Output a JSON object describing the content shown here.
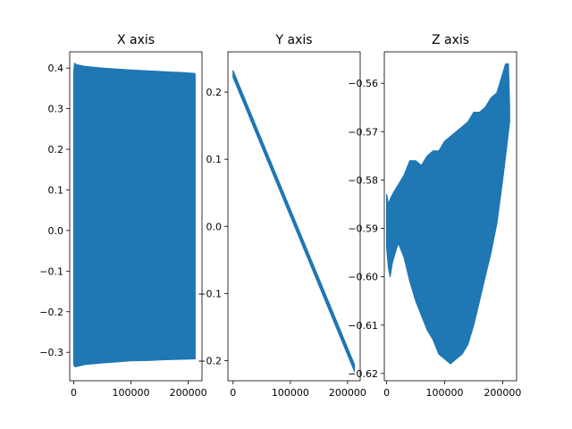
{
  "figure": {
    "background": "#ffffff",
    "series_color": "#1f77b4"
  },
  "chart_data": [
    {
      "type": "area",
      "title": "X axis",
      "xlim": [
        -7000,
        224000
      ],
      "ylim": [
        -0.37,
        0.44
      ],
      "xticks": [
        0,
        100000,
        200000
      ],
      "xtick_labels": [
        "0",
        "100000",
        "200000"
      ],
      "yticks": [
        -0.3,
        -0.2,
        -0.1,
        0.0,
        0.1,
        0.2,
        0.3,
        0.4
      ],
      "ytick_labels": [
        "−0.3",
        "−0.2",
        "−0.1",
        "0.0",
        "0.1",
        "0.2",
        "0.3",
        "0.4"
      ],
      "series": [
        {
          "x": [
            0,
            1500,
            5000,
            20000,
            50000,
            80000,
            100000,
            130000,
            160000,
            190000,
            210000,
            212000
          ],
          "upper": [
            0.39,
            0.412,
            0.408,
            0.404,
            0.4,
            0.397,
            0.395,
            0.393,
            0.391,
            0.389,
            0.387,
            0.386
          ],
          "lower": [
            -0.33,
            -0.335,
            -0.335,
            -0.33,
            -0.326,
            -0.323,
            -0.321,
            -0.32,
            -0.318,
            -0.317,
            -0.316,
            -0.316
          ]
        }
      ]
    },
    {
      "type": "line",
      "title": "Y axis",
      "xlim": [
        -9000,
        222000
      ],
      "ylim": [
        -0.23,
        0.26
      ],
      "xticks": [
        0,
        100000,
        200000
      ],
      "xtick_labels": [
        "0",
        "100000",
        "200000"
      ],
      "yticks": [
        -0.2,
        -0.1,
        0.0,
        0.1,
        0.2
      ],
      "ytick_labels": [
        "−0.2",
        "−0.1",
        "0.0",
        "0.1",
        "0.2"
      ],
      "series": [
        {
          "x": [
            0,
            212000
          ],
          "upper": [
            0.232,
            -0.206
          ],
          "lower": [
            0.222,
            -0.216
          ]
        }
      ]
    },
    {
      "type": "area",
      "title": "Z axis",
      "xlim": [
        -4000,
        224000
      ],
      "ylim": [
        -0.6215,
        -0.5535
      ],
      "xticks": [
        0,
        100000,
        200000
      ],
      "xtick_labels": [
        "0",
        "100000",
        "200000"
      ],
      "yticks": [
        -0.62,
        -0.61,
        -0.6,
        -0.59,
        -0.58,
        -0.57,
        -0.56
      ],
      "ytick_labels": [
        "−0.62",
        "−0.61",
        "−0.60",
        "−0.59",
        "−0.58",
        "−0.57",
        "−0.56"
      ],
      "series": [
        {
          "x": [
            0,
            3000,
            6000,
            10000,
            20000,
            30000,
            40000,
            50000,
            60000,
            70000,
            80000,
            90000,
            100000,
            110000,
            120000,
            130000,
            140000,
            150000,
            160000,
            170000,
            180000,
            190000,
            200000,
            205000,
            210000,
            212000
          ],
          "upper": [
            -0.583,
            -0.585,
            -0.584,
            -0.583,
            -0.581,
            -0.579,
            -0.576,
            -0.576,
            -0.577,
            -0.575,
            -0.574,
            -0.574,
            -0.572,
            -0.571,
            -0.57,
            -0.569,
            -0.568,
            -0.566,
            -0.566,
            -0.565,
            -0.563,
            -0.562,
            -0.558,
            -0.556,
            -0.556,
            -0.565
          ],
          "lower": [
            -0.594,
            -0.598,
            -0.6,
            -0.597,
            -0.593,
            -0.596,
            -0.601,
            -0.605,
            -0.608,
            -0.611,
            -0.613,
            -0.616,
            -0.617,
            -0.618,
            -0.617,
            -0.616,
            -0.614,
            -0.61,
            -0.605,
            -0.6,
            -0.595,
            -0.589,
            -0.58,
            -0.575,
            -0.57,
            -0.568
          ]
        }
      ]
    }
  ]
}
